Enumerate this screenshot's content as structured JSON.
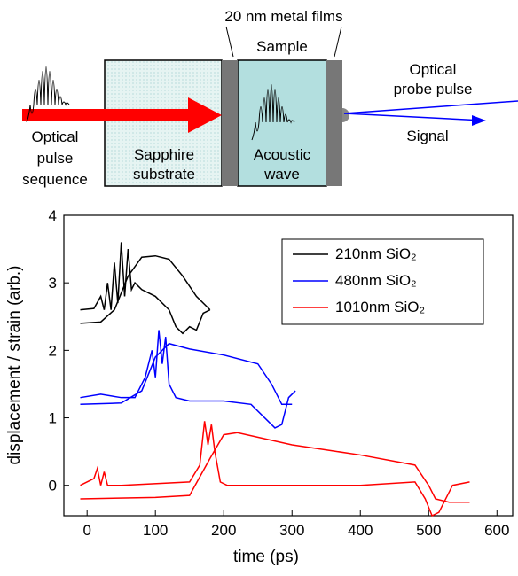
{
  "diagram": {
    "films_label": "20 nm metal films",
    "sample_label": "Sample",
    "probe_label": [
      "Optical",
      "probe pulse"
    ],
    "signal_label": "Signal",
    "pulse_label": [
      "Optical",
      "pulse",
      "sequence"
    ],
    "substrate_label": [
      "Sapphire",
      "substrate"
    ],
    "wave_label": [
      "Acoustic",
      "wave"
    ]
  },
  "chart_data": {
    "type": "line",
    "xlabel": "time (ps)",
    "ylabel": "displacement / strain (arb.)",
    "xlim": [
      -34,
      623
    ],
    "ylim": [
      -0.45,
      4
    ],
    "xticks": [
      0,
      100,
      200,
      300,
      400,
      500,
      600
    ],
    "yticks": [
      0,
      1,
      2,
      3,
      4
    ],
    "legend": "top-right",
    "series": [
      {
        "name": "210nm SiO₂",
        "color": "#000000",
        "x": [
          -10,
          20,
          40,
          60,
          80,
          100,
          120,
          140,
          160,
          180
        ],
        "values": [
          2.4,
          2.42,
          2.6,
          3.1,
          3.38,
          3.4,
          3.35,
          3.1,
          2.8,
          2.6
        ]
      },
      {
        "name": "480nm SiO₂",
        "color": "#0000ff",
        "x": [
          -10,
          50,
          80,
          100,
          120,
          150,
          200,
          250,
          270,
          285,
          300
        ],
        "values": [
          1.2,
          1.22,
          1.4,
          1.9,
          2.1,
          2.02,
          1.93,
          1.8,
          1.5,
          1.2,
          1.2
        ]
      },
      {
        "name": "1010nm SiO₂",
        "color": "#ff0000",
        "x": [
          -10,
          100,
          150,
          180,
          200,
          220,
          300,
          400,
          480,
          500,
          510,
          530,
          560
        ],
        "values": [
          -0.2,
          -0.18,
          -0.15,
          0.4,
          0.75,
          0.78,
          0.6,
          0.45,
          0.3,
          0,
          -0.2,
          -0.25,
          -0.25
        ]
      },
      {
        "color": "#000000",
        "x": [
          -10,
          10,
          20,
          25,
          30,
          35,
          40,
          45,
          50,
          55,
          60,
          65,
          70,
          80,
          100,
          120,
          130,
          140,
          150,
          160,
          170,
          180
        ],
        "values": [
          2.6,
          2.62,
          2.8,
          2.6,
          3.0,
          2.6,
          3.3,
          2.7,
          3.6,
          2.8,
          3.5,
          2.9,
          3.0,
          2.9,
          2.8,
          2.6,
          2.35,
          2.25,
          2.35,
          2.3,
          2.55,
          2.6
        ]
      },
      {
        "color": "#0000ff",
        "x": [
          -10,
          20,
          50,
          70,
          85,
          95,
          100,
          105,
          110,
          115,
          120,
          130,
          150,
          200,
          240,
          260,
          275,
          285,
          295,
          305
        ],
        "values": [
          1.3,
          1.35,
          1.3,
          1.3,
          1.6,
          2.0,
          1.6,
          2.3,
          1.8,
          2.2,
          1.5,
          1.3,
          1.25,
          1.25,
          1.2,
          1.0,
          0.85,
          0.9,
          1.3,
          1.4
        ]
      },
      {
        "color": "#ff0000",
        "x": [
          -10,
          10,
          15,
          20,
          25,
          30,
          50,
          150,
          165,
          172,
          177,
          182,
          187,
          195,
          205,
          250,
          400,
          480,
          495,
          505,
          515,
          535,
          560
        ],
        "values": [
          0,
          0.1,
          0.25,
          0,
          0.2,
          0,
          0,
          0.05,
          0.3,
          0.95,
          0.6,
          0.9,
          0.5,
          0.05,
          0,
          0,
          0,
          0.05,
          -0.2,
          -0.45,
          -0.4,
          0,
          0.05
        ]
      }
    ]
  }
}
